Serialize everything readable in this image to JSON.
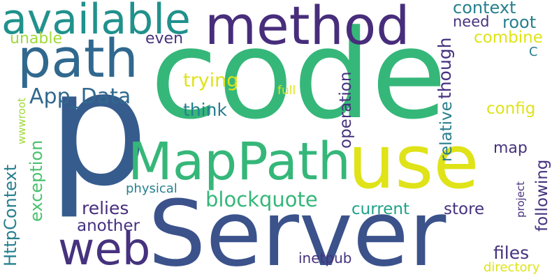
{
  "palette": {
    "dark_purple": "#46327e",
    "purple": "#472d7b",
    "blue": "#365c8d",
    "teal": "#277f8e",
    "teal_green": "#1fa187",
    "green": "#4ac16d",
    "light_green": "#a0da39",
    "yellow": "#dfe318"
  },
  "words": {
    "code": "code",
    "p": "p",
    "server": "Server",
    "use": "use",
    "mappath": "MapPath",
    "method": "method",
    "path": "path",
    "available": "available",
    "web": "web",
    "app_data": "App_Data",
    "blockquote": "blockquote",
    "context": "context",
    "root": "root",
    "need": "need",
    "combine": "combine",
    "unable": "unable",
    "even": "even",
    "c": "C",
    "though": "though",
    "trying": "trying",
    "full": "full",
    "config": "config",
    "think": "think",
    "relative": "relative",
    "operation": "operation",
    "wwwroot": "wwwroot",
    "exception": "exception",
    "httpcontext": "HttpContext",
    "map": "map",
    "following": "following",
    "project": "project",
    "physical": "physical",
    "relies": "relies",
    "current": "current",
    "store": "store",
    "another": "another",
    "files": "files",
    "inetpub": "inetpub",
    "directory": "directory"
  }
}
